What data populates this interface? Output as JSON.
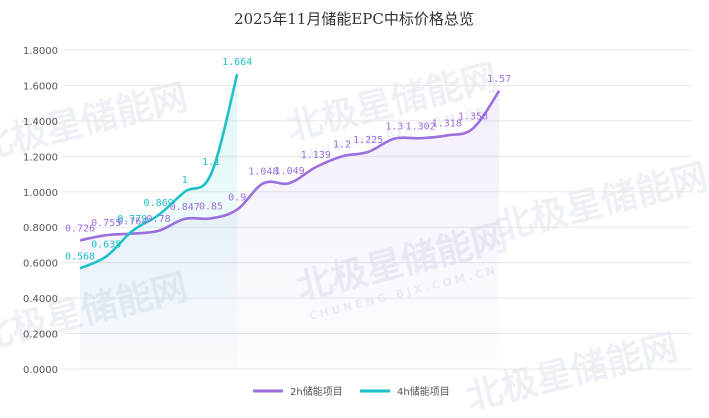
{
  "chart_data": {
    "type": "line",
    "title": "2025年11月储能EPC中标价格总览",
    "ylim": [
      0,
      1.8
    ],
    "ytick_step": 0.2,
    "ytick_labels": [
      "0.0000",
      "0.2000",
      "0.4000",
      "0.6000",
      "0.8000",
      "1.0000",
      "1.2000",
      "1.4000",
      "1.6000",
      "1.8000"
    ],
    "grid": true,
    "legend_position": "bottom-center",
    "series": [
      {
        "name": "2h储能项目",
        "color": "#9b6fdc",
        "values": [
          0.726,
          0.755,
          0.764,
          0.78,
          0.847,
          0.85,
          0.9,
          1.048,
          1.049,
          1.139,
          1.2,
          1.225,
          1.3,
          1.302,
          1.318,
          1.358,
          1.57
        ],
        "labels": [
          "0.726",
          "0.755",
          "0.764",
          "0.78",
          "0.847",
          "0.85",
          "0.9",
          "1.048",
          "1.049",
          "1.139",
          "1.2",
          "1.225",
          "1.3",
          "1.302",
          "1.318",
          "1.358",
          "1.57"
        ]
      },
      {
        "name": "4h储能项目",
        "color": "#1fc1c9",
        "values": [
          0.568,
          0.635,
          0.779,
          0.869,
          1,
          1.1,
          1.664
        ],
        "labels": [
          "0.568",
          "0.635",
          "0.779",
          "0.869",
          "1",
          "1.1",
          "1.664"
        ]
      }
    ]
  },
  "watermark": {
    "text": "北极星储能网",
    "subtext": "CHUNENG.BJX.COM.CN"
  }
}
